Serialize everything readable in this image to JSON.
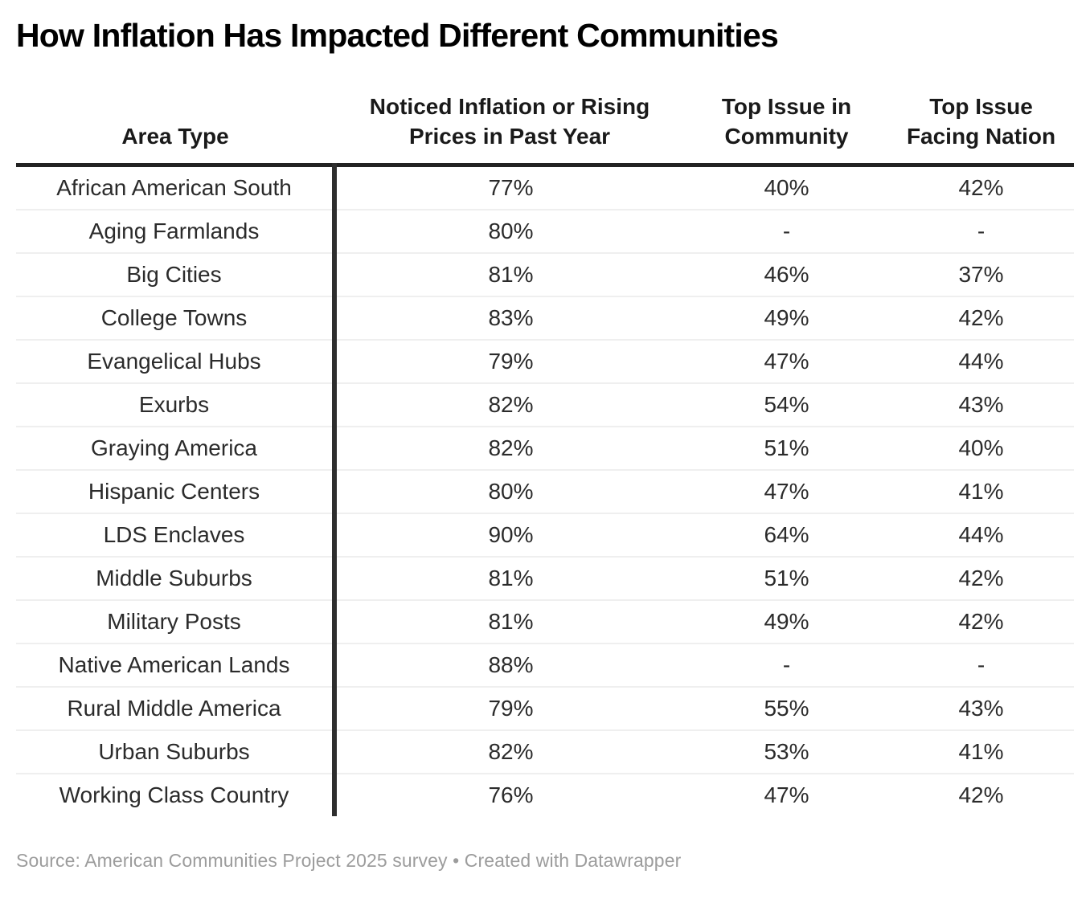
{
  "page": {
    "title": "How Inflation Has Impacted Different Communities"
  },
  "chart_data": {
    "type": "table",
    "title": "How Inflation Has Impacted Different Communities",
    "columns": [
      "Area Type",
      "Noticed Inflation or Rising Prices in Past Year",
      "Top Issue in Community",
      "Top Issue Facing Nation"
    ],
    "rows": [
      [
        "African American South",
        "77%",
        "40%",
        "42%"
      ],
      [
        "Aging Farmlands",
        "80%",
        "-",
        "-"
      ],
      [
        "Big Cities",
        "81%",
        "46%",
        "37%"
      ],
      [
        "College Towns",
        "83%",
        "49%",
        "42%"
      ],
      [
        "Evangelical Hubs",
        "79%",
        "47%",
        "44%"
      ],
      [
        "Exurbs",
        "82%",
        "54%",
        "43%"
      ],
      [
        "Graying America",
        "82%",
        "51%",
        "40%"
      ],
      [
        "Hispanic Centers",
        "80%",
        "47%",
        "41%"
      ],
      [
        "LDS Enclaves",
        "90%",
        "64%",
        "44%"
      ],
      [
        "Middle Suburbs",
        "81%",
        "51%",
        "42%"
      ],
      [
        "Military Posts",
        "81%",
        "49%",
        "42%"
      ],
      [
        "Native American Lands",
        "88%",
        "-",
        "-"
      ],
      [
        "Rural Middle America",
        "79%",
        "55%",
        "43%"
      ],
      [
        "Urban Suburbs",
        "82%",
        "53%",
        "41%"
      ],
      [
        "Working Class Country",
        "76%",
        "47%",
        "42%"
      ]
    ],
    "missing_value_marker": "-",
    "layout_hints": {
      "first_column_divider": true,
      "header_rule": "thick-dark",
      "row_separators": "light-gray"
    }
  },
  "footer": {
    "source_label": "Source:",
    "source_text": "American Communities Project 2025 survey",
    "separator": "•",
    "attribution": "Created with Datawrapper"
  },
  "colors": {
    "background": "#ffffff",
    "title_text": "#000000",
    "body_text": "#2b2b2b",
    "border_dark": "#2e2e2e",
    "row_separator": "#efefef",
    "footer_text": "#9c9c9c"
  }
}
